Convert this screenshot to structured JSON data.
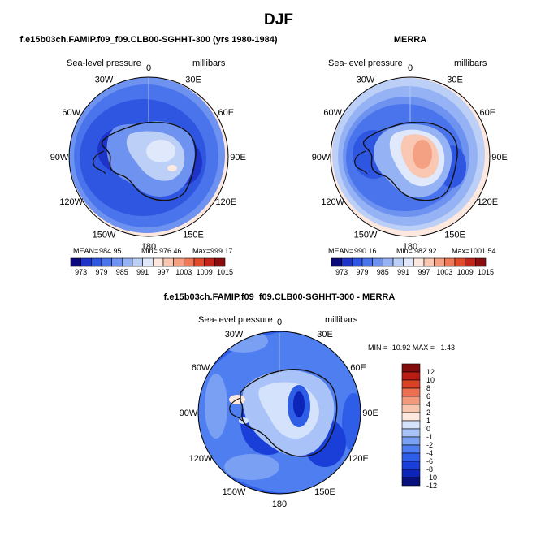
{
  "figure": {
    "title": "DJF"
  },
  "colors": {
    "palette": [
      "#0a0a7a",
      "#1e34c8",
      "#2f56e0",
      "#4a74ec",
      "#6e92f0",
      "#95b2f4",
      "#bccff7",
      "#e0e9fb",
      "#fde8df",
      "#f9c7b2",
      "#f4a083",
      "#ef7858",
      "#e24a2d",
      "#c3241a",
      "#8c0d0d"
    ],
    "diff_palette": [
      "#07107c",
      "#0d24b8",
      "#1a3fd8",
      "#2e5ee8",
      "#4f7ef0",
      "#7aa0f4",
      "#a9c2f7",
      "#d4e2fb",
      "#fde8df",
      "#f9c4ad",
      "#f39a7d",
      "#eb6f50",
      "#db4127",
      "#b81c12",
      "#840c0c"
    ],
    "coast": "#111111",
    "land": "#d8e4f8"
  },
  "labels": {
    "lon_labels": [
      "0",
      "30E",
      "60E",
      "90E",
      "120E",
      "150E",
      "180",
      "150W",
      "120W",
      "90W",
      "60W",
      "30W"
    ]
  },
  "chart_data": [
    {
      "type": "heatmap",
      "name": "model",
      "title": "f.e15b03ch.FAMIP.f09_f09.CLB00-SGHHT-300 (yrs 1980-1984)",
      "variable": "Sea-level pressure",
      "units": "millibars",
      "projection": "south polar stereographic",
      "stats": {
        "mean_label": "MEAN=",
        "mean": "984.95",
        "min_label": "Min=",
        "min": "976.46",
        "max_label": "Max=",
        "max": "999.17"
      },
      "colorbar": {
        "levels": [
          "973",
          "979",
          "985",
          "991",
          "997",
          "1003",
          "1009",
          "1015"
        ]
      }
    },
    {
      "type": "heatmap",
      "name": "merra",
      "title": "MERRA",
      "variable": "Sea-level pressure",
      "units": "millibars",
      "projection": "south polar stereographic",
      "stats": {
        "mean_label": "MEAN=",
        "mean": "990.16",
        "min_label": "Min=",
        "min": "982.92",
        "max_label": "Max=",
        "max": "1001.54"
      },
      "colorbar": {
        "levels": [
          "973",
          "979",
          "985",
          "991",
          "997",
          "1003",
          "1009",
          "1015"
        ]
      }
    },
    {
      "type": "heatmap",
      "name": "difference",
      "title": "f.e15b03ch.FAMIP.f09_f09.CLB00-SGHHT-300 - MERRA",
      "variable": "Sea-level pressure",
      "units": "millibars",
      "projection": "south polar stereographic",
      "stats": {
        "text": "MIN = -10.92 MAX =   1.43"
      },
      "colorbar": {
        "levels": [
          "12",
          "10",
          "8",
          "6",
          "4",
          "2",
          "1",
          "0",
          "-1",
          "-2",
          "-4",
          "-6",
          "-8",
          "-10",
          "-12"
        ]
      }
    }
  ]
}
